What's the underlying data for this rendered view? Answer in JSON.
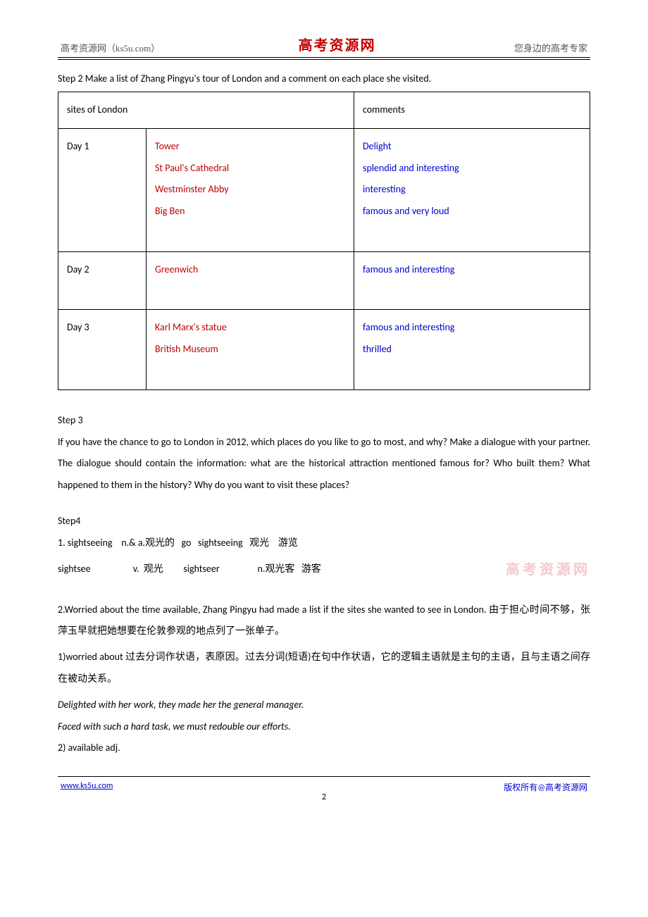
{
  "header": {
    "left": "高考资源网（ks5u.com）",
    "center": "高考资源网",
    "right": "您身边的高考专家"
  },
  "step2": {
    "title": "Step 2 Make a list of Zhang Pingyu's tour of London and a comment on each place she visited.",
    "col_sites": "sites of London",
    "col_comments": "comments",
    "rows": [
      {
        "day": "Day 1",
        "sites": [
          "Tower",
          " St Paul's Cathedral",
          "Westminster Abby",
          "  Big Ben"
        ],
        "comments": [
          "Delight",
          "splendid and interesting",
          "interesting",
          "famous and very loud"
        ]
      },
      {
        "day": "Day 2",
        "sites": [
          "Greenwich"
        ],
        "comments": [
          "famous and interesting"
        ]
      },
      {
        "day": "Day 3",
        "sites": [
          "  Karl Marx's statue",
          "British Museum"
        ],
        "comments": [
          "famous and interesting",
          "thrilled"
        ]
      }
    ]
  },
  "step3": {
    "label": "Step 3",
    "text": "If you have the chance to go to London in 2012,   which places do you like to go to most, and why? Make a dialogue with your partner. The dialogue should contain the information: what are the historical attraction mentioned famous for? Who built them? What happened to them in the history? Why do you want to visit these places?"
  },
  "step4": {
    "label": "Step4",
    "line1_a": "1. sightseeing    n.& a.观光的   go   sightseeing   观光    游览",
    "line1_b_left": "sightsee                   v.  观光         sightseer                 n.观光客   游客",
    "watermark": "高考资源网",
    "item2_en": "2.Worried about the time available, Zhang Pingyu had made a list if the sites she wanted to see in London.  ",
    "item2_cn": "由于担心时间不够，张萍玉早就把她想要在伦敦参观的地点列了一张单子。",
    "note1": "1)worried about 过去分词作状语，表原因。过去分词(短语)在句中作状语，它的逻辑主语就是主句的主语，且与主语之间存在被动关系。",
    "ex1": "Delighted with her work, they made her the general manager.",
    "ex2": "Faced with such a hard task, we must redouble our efforts.",
    "note2": "2) available   adj."
  },
  "footer": {
    "url": "www.ks5u.com",
    "right": "版权所有@高考资源网",
    "page": "2"
  },
  "colors": {
    "red": "#c00000",
    "blue": "#0000cc",
    "watermark": "#f5c9c9",
    "text": "#000000",
    "background": "#ffffff"
  }
}
